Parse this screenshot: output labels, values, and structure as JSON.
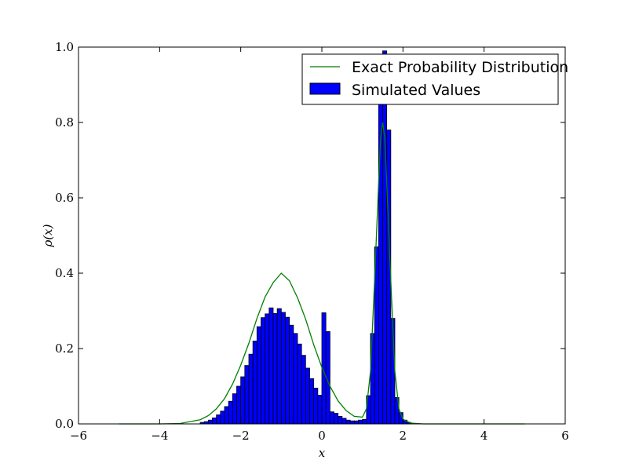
{
  "chart_data": {
    "type": "bar",
    "title": "",
    "xlabel": "x",
    "ylabel": "ρ(x)",
    "xlim": [
      -6,
      6
    ],
    "ylim": [
      0,
      1.0
    ],
    "x_ticks": [
      "−6",
      "−4",
      "−2",
      "0",
      "2",
      "4",
      "6"
    ],
    "x_tick_values": [
      -6,
      -4,
      -2,
      0,
      2,
      4,
      6
    ],
    "y_ticks": [
      "0.0",
      "0.2",
      "0.4",
      "0.6",
      "0.8",
      "1.0"
    ],
    "y_tick_values": [
      0,
      0.2,
      0.4,
      0.6,
      0.8,
      1.0
    ],
    "grid": false,
    "legend_position": "top-right",
    "series": [
      {
        "name": "Exact Probability Distribution",
        "kind": "line",
        "color": "#008000",
        "x": [
          -5.0,
          -4.0,
          -3.5,
          -3.0,
          -2.8,
          -2.6,
          -2.4,
          -2.2,
          -2.0,
          -1.8,
          -1.6,
          -1.4,
          -1.2,
          -1.0,
          -0.8,
          -0.6,
          -0.4,
          -0.2,
          0.0,
          0.2,
          0.4,
          0.6,
          0.8,
          1.0,
          1.1,
          1.2,
          1.3,
          1.4,
          1.45,
          1.5,
          1.55,
          1.6,
          1.7,
          1.8,
          1.9,
          2.0,
          2.2,
          2.5,
          3.0,
          4.0,
          5.0
        ],
        "y": [
          0.0,
          0.0,
          0.001,
          0.011,
          0.022,
          0.04,
          0.067,
          0.106,
          0.156,
          0.214,
          0.28,
          0.337,
          0.375,
          0.4,
          0.38,
          0.335,
          0.278,
          0.21,
          0.15,
          0.1,
          0.061,
          0.035,
          0.02,
          0.018,
          0.04,
          0.14,
          0.38,
          0.64,
          0.76,
          0.8,
          0.76,
          0.64,
          0.38,
          0.14,
          0.04,
          0.012,
          0.002,
          0.0,
          0.0,
          0.0,
          0.0
        ]
      },
      {
        "name": "Simulated Values",
        "kind": "histogram",
        "color": "#0000ff",
        "edgecolor": "#000000",
        "bin_width": 0.1,
        "bin_starts": [
          -3.0,
          -2.9,
          -2.8,
          -2.7,
          -2.6,
          -2.5,
          -2.4,
          -2.3,
          -2.2,
          -2.1,
          -2.0,
          -1.9,
          -1.8,
          -1.7,
          -1.6,
          -1.5,
          -1.4,
          -1.3,
          -1.2,
          -1.1,
          -1.0,
          -0.9,
          -0.8,
          -0.7,
          -0.6,
          -0.5,
          -0.4,
          -0.3,
          -0.2,
          -0.1,
          0.0,
          0.1,
          0.2,
          0.3,
          0.4,
          0.5,
          0.6,
          0.7,
          0.8,
          0.9,
          1.0,
          1.1,
          1.2,
          1.3,
          1.4,
          1.5,
          1.6,
          1.7,
          1.8,
          1.9,
          2.0,
          2.1
        ],
        "values": [
          0.004,
          0.006,
          0.01,
          0.016,
          0.024,
          0.034,
          0.046,
          0.06,
          0.08,
          0.1,
          0.125,
          0.155,
          0.185,
          0.22,
          0.258,
          0.282,
          0.292,
          0.308,
          0.293,
          0.306,
          0.296,
          0.283,
          0.262,
          0.24,
          0.212,
          0.182,
          0.148,
          0.12,
          0.095,
          0.076,
          0.295,
          0.245,
          0.032,
          0.028,
          0.02,
          0.015,
          0.01,
          0.008,
          0.008,
          0.01,
          0.012,
          0.075,
          0.24,
          0.47,
          0.88,
          0.99,
          0.78,
          0.28,
          0.07,
          0.03,
          0.01,
          0.004
        ]
      }
    ]
  }
}
